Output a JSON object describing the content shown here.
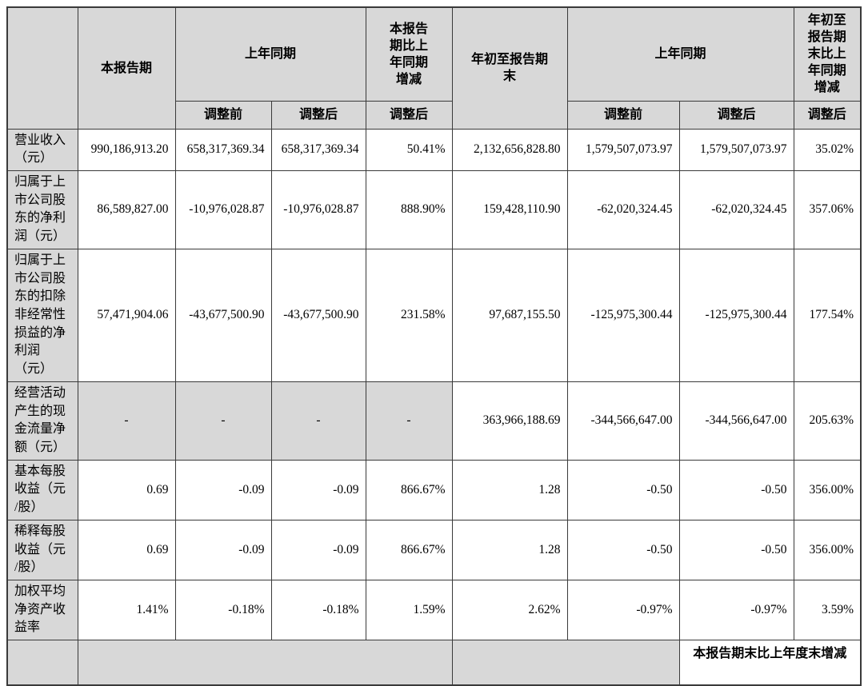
{
  "colors": {
    "header_bg": "#d8d8d8",
    "border": "#3a3a3a",
    "page_bg": "#ffffff"
  },
  "table": {
    "headers": {
      "row_label_blank": "",
      "current_period": "本报告期",
      "prior_year_same_period_1": "上年同期",
      "period_vs_prior_change": "本报告\n期比上\n年同期\n增减",
      "year_to_date": "年初至报告期\n末",
      "prior_year_same_period_2": "上年同期",
      "ytd_vs_prior_change": "年初至\n报告期\n末比上\n年同期\n增减",
      "before_adjust_1": "调整前",
      "after_adjust_1": "调整后",
      "after_adjust_2": "调整后",
      "before_adjust_2": "调整前",
      "after_adjust_3": "调整后",
      "after_adjust_4": "调整后"
    },
    "rows": [
      {
        "label": "营业收入\n（元）",
        "values": [
          "990,186,913.20",
          "658,317,369.34",
          "658,317,369.34",
          "50.41%",
          "2,132,656,828.80",
          "1,579,507,073.97",
          "1,579,507,073.97",
          "35.02%"
        ]
      },
      {
        "label": "归属于上\n市公司股\n东的净利\n润（元）",
        "values": [
          "86,589,827.00",
          "-10,976,028.87",
          "-10,976,028.87",
          "888.90%",
          "159,428,110.90",
          "-62,020,324.45",
          "-62,020,324.45",
          "357.06%"
        ]
      },
      {
        "label": "归属于上\n市公司股\n东的扣除\n非经常性\n损益的净\n利润\n（元）",
        "values": [
          "57,471,904.06",
          "-43,677,500.90",
          "-43,677,500.90",
          "231.58%",
          "97,687,155.50",
          "-125,975,300.44",
          "-125,975,300.44",
          "177.54%"
        ]
      },
      {
        "label": "经营活动\n产生的现\n金流量净\n额（元）",
        "values": [
          "-",
          "-",
          "-",
          "-",
          "363,966,188.69",
          "-344,566,647.00",
          "-344,566,647.00",
          "205.63%"
        ]
      },
      {
        "label": "基本每股\n收益（元\n/股）",
        "values": [
          "0.69",
          "-0.09",
          "-0.09",
          "866.67%",
          "1.28",
          "-0.50",
          "-0.50",
          "356.00%"
        ]
      },
      {
        "label": "稀释每股\n收益（元\n/股）",
        "values": [
          "0.69",
          "-0.09",
          "-0.09",
          "866.67%",
          "1.28",
          "-0.50",
          "-0.50",
          "356.00%"
        ]
      },
      {
        "label": "加权平均\n净资产收\n益率",
        "values": [
          "1.41%",
          "-0.18%",
          "-0.18%",
          "1.59%",
          "2.62%",
          "-0.97%",
          "-0.97%",
          "3.59%"
        ]
      }
    ],
    "partial_next_row": {
      "clipped_header": "本报告期末比上年度末增减"
    }
  }
}
